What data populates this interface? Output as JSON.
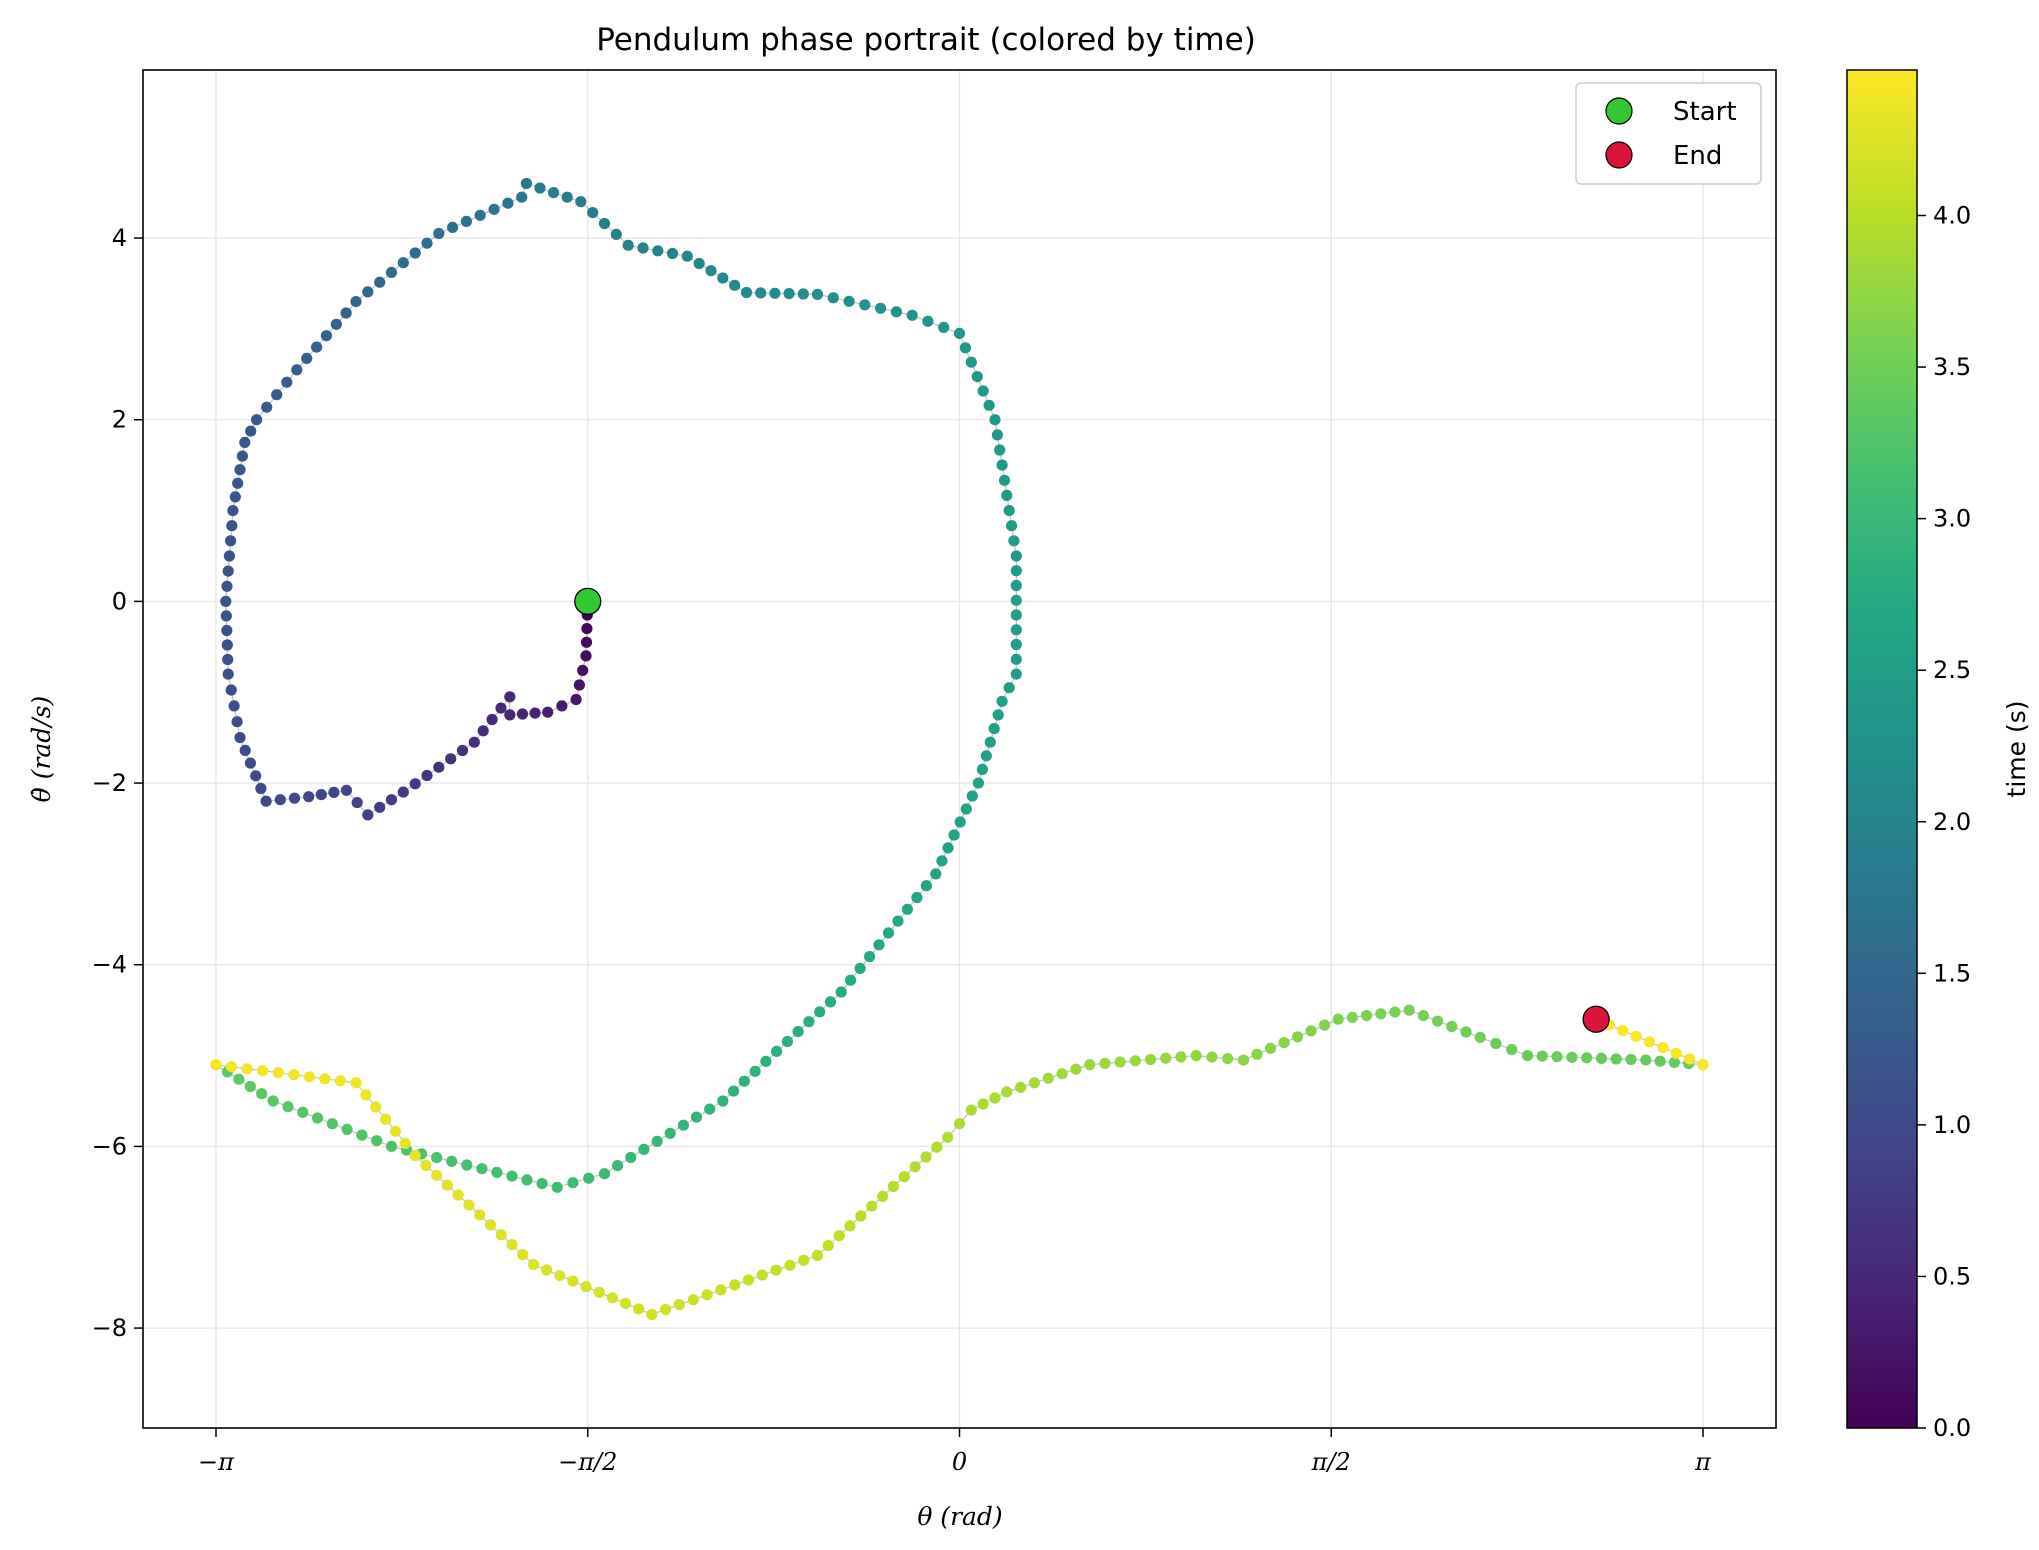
{
  "chart_data": {
    "type": "scatter",
    "title": "Pendulum phase portrait (colored by time)",
    "xlabel": "θ (rad)",
    "ylabel": "θ̇ (rad/s)",
    "xlim": [
      -3.45,
      3.45
    ],
    "ylim": [
      -9.1,
      5.85
    ],
    "grid": true,
    "x_ticks": [
      {
        "value": -3.14159,
        "label": "−π"
      },
      {
        "value": -1.5708,
        "label": "−π/2"
      },
      {
        "value": 0,
        "label": "0"
      },
      {
        "value": 1.5708,
        "label": "π/2"
      },
      {
        "value": 3.14159,
        "label": "π"
      }
    ],
    "y_ticks": [
      {
        "value": 4,
        "label": "4"
      },
      {
        "value": 2,
        "label": "2"
      },
      {
        "value": 0,
        "label": "0"
      },
      {
        "value": -2,
        "label": "−2"
      },
      {
        "value": -4,
        "label": "−4"
      },
      {
        "value": -6,
        "label": "−6"
      },
      {
        "value": -8,
        "label": "−8"
      }
    ],
    "colorbar": {
      "label": "time (s)",
      "colormap": "viridis",
      "range": [
        0,
        4.48
      ],
      "ticks": [
        {
          "value": 0.0,
          "label": "0.0"
        },
        {
          "value": 0.5,
          "label": "0.5"
        },
        {
          "value": 1.0,
          "label": "1.0"
        },
        {
          "value": 1.5,
          "label": "1.5"
        },
        {
          "value": 2.0,
          "label": "2.0"
        },
        {
          "value": 2.5,
          "label": "2.5"
        },
        {
          "value": 3.0,
          "label": "3.0"
        },
        {
          "value": 3.5,
          "label": "3.5"
        },
        {
          "value": 4.0,
          "label": "4.0"
        }
      ]
    },
    "legend": {
      "position": "top-right",
      "entries": [
        {
          "label": "Start",
          "color": "#32c832"
        },
        {
          "label": "End",
          "color": "#dc143c"
        }
      ]
    },
    "start_point": {
      "x": -1.5708,
      "y": 0
    },
    "end_point": {
      "x": 2.69,
      "y": -4.6
    },
    "trajectory": {
      "time_range": [
        0,
        4.48
      ],
      "keypoints": [
        {
          "x": -1.5708,
          "y": 0,
          "t": 0.0
        },
        {
          "x": -1.578,
          "y": -0.6,
          "t": 0.15
        },
        {
          "x": -1.62,
          "y": -1.08,
          "t": 0.3
        },
        {
          "x": -1.74,
          "y": -1.22,
          "t": 0.4
        },
        {
          "x": -1.9,
          "y": -1.25,
          "t": 0.47
        },
        {
          "x": -1.9,
          "y": -1.05,
          "t": 0.5
        },
        {
          "x": -2.05,
          "y": -1.55,
          "t": 0.6
        },
        {
          "x": -2.35,
          "y": -2.1,
          "t": 0.75
        },
        {
          "x": -2.5,
          "y": -2.35,
          "t": 0.85
        },
        {
          "x": -2.59,
          "y": -2.08,
          "t": 0.9
        },
        {
          "x": -2.75,
          "y": -2.15,
          "t": 0.95
        },
        {
          "x": -2.93,
          "y": -2.2,
          "t": 1.0
        },
        {
          "x": -3.04,
          "y": -1.5,
          "t": 1.05
        },
        {
          "x": -3.09,
          "y": -0.8,
          "t": 1.09
        },
        {
          "x": -3.1,
          "y": 0.0,
          "t": 1.13
        },
        {
          "x": -3.07,
          "y": 1.0,
          "t": 1.18
        },
        {
          "x": -3.02,
          "y": 1.75,
          "t": 1.22
        },
        {
          "x": -2.97,
          "y": 2.0,
          "t": 1.24
        },
        {
          "x": -2.8,
          "y": 2.55,
          "t": 1.34
        },
        {
          "x": -2.55,
          "y": 3.3,
          "t": 1.48
        },
        {
          "x": -2.2,
          "y": 4.05,
          "t": 1.64
        },
        {
          "x": -1.85,
          "y": 4.45,
          "t": 1.78
        },
        {
          "x": -1.83,
          "y": 4.6,
          "t": 1.8
        },
        {
          "x": -1.6,
          "y": 4.4,
          "t": 1.88
        },
        {
          "x": -1.4,
          "y": 3.92,
          "t": 1.96
        },
        {
          "x": -1.15,
          "y": 3.8,
          "t": 2.04
        },
        {
          "x": -0.9,
          "y": 3.4,
          "t": 2.12
        },
        {
          "x": -0.6,
          "y": 3.38,
          "t": 2.2
        },
        {
          "x": -0.2,
          "y": 3.15,
          "t": 2.3
        },
        {
          "x": 0.0,
          "y": 2.95,
          "t": 2.36
        },
        {
          "x": 0.15,
          "y": 2.0,
          "t": 2.4
        },
        {
          "x": 0.24,
          "y": 0.5,
          "t": 2.45
        },
        {
          "x": 0.24,
          "y": -0.8,
          "t": 2.49
        },
        {
          "x": 0.18,
          "y": -1.1,
          "t": 2.51
        },
        {
          "x": 0.08,
          "y": -2.0,
          "t": 2.55
        },
        {
          "x": -0.1,
          "y": -3.0,
          "t": 2.62
        },
        {
          "x": -0.5,
          "y": -4.3,
          "t": 2.75
        },
        {
          "x": -1.0,
          "y": -5.5,
          "t": 2.9
        },
        {
          "x": -1.5,
          "y": -6.3,
          "t": 3.03
        },
        {
          "x": -1.7,
          "y": -6.45,
          "t": 3.08
        },
        {
          "x": -2.4,
          "y": -6.0,
          "t": 3.22
        },
        {
          "x": -2.9,
          "y": -5.5,
          "t": 3.32
        },
        {
          "x": -3.14159,
          "y": -5.1,
          "t": 3.38
        },
        {
          "x": 3.14159,
          "y": -5.1,
          "t": 3.39
        },
        {
          "x": 2.9,
          "y": -5.05,
          "t": 3.41
        },
        {
          "x": 2.4,
          "y": -5.0,
          "t": 3.46
        },
        {
          "x": 2.2,
          "y": -4.8,
          "t": 3.5
        },
        {
          "x": 1.9,
          "y": -4.5,
          "t": 3.56
        },
        {
          "x": 1.6,
          "y": -4.6,
          "t": 3.62
        },
        {
          "x": 1.2,
          "y": -5.05,
          "t": 3.7
        },
        {
          "x": 1.0,
          "y": -5.0,
          "t": 3.74
        },
        {
          "x": 0.55,
          "y": -5.1,
          "t": 3.82
        },
        {
          "x": 0.2,
          "y": -5.4,
          "t": 3.88
        },
        {
          "x": 0.05,
          "y": -5.6,
          "t": 3.91
        },
        {
          "x": -0.05,
          "y": -5.9,
          "t": 3.93
        },
        {
          "x": -0.6,
          "y": -7.2,
          "t": 4.05
        },
        {
          "x": -1.3,
          "y": -7.85,
          "t": 4.16
        },
        {
          "x": -1.8,
          "y": -7.3,
          "t": 4.24
        },
        {
          "x": -2.3,
          "y": -6.1,
          "t": 4.32
        },
        {
          "x": -2.55,
          "y": -5.3,
          "t": 4.36
        },
        {
          "x": -3.14159,
          "y": -5.1,
          "t": 4.42
        },
        {
          "x": 3.14159,
          "y": -5.1,
          "t": 4.43
        },
        {
          "x": 2.69,
          "y": -4.6,
          "t": 4.48
        }
      ]
    }
  }
}
